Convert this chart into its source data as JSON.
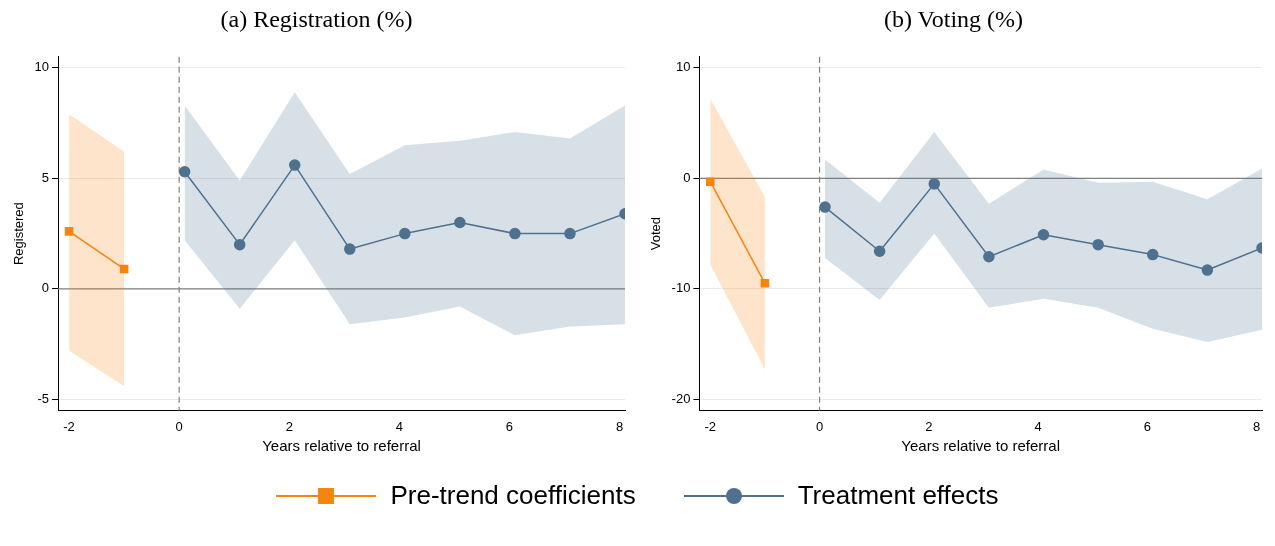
{
  "chart_data": [
    {
      "type": "line",
      "title": "(a) Registration (%)",
      "xlabel": "Years relative to referral",
      "ylabel": "Registered",
      "xlim": [
        -2.2,
        8.1
      ],
      "xticks": [
        -2,
        0,
        2,
        4,
        6,
        8
      ],
      "ylim": [
        -5.5,
        10.5
      ],
      "yticks": [
        -5,
        0,
        5,
        10
      ],
      "grid": "y",
      "legend": "bottom",
      "ref_lines": [
        {
          "axis": "y",
          "value": 0,
          "color": "#808080",
          "line_style": "solid"
        },
        {
          "axis": "x",
          "value": 0,
          "color": "#808080",
          "line_style": "dashed"
        }
      ],
      "series": [
        {
          "name": "Pre-trend coefficients",
          "color": "#f5850f",
          "marker": "square",
          "x": [
            -2,
            -1
          ],
          "values": [
            2.6,
            0.9
          ],
          "lower": [
            -2.8,
            -4.4
          ],
          "upper": [
            7.9,
            6.2
          ]
        },
        {
          "name": "Treatment effects",
          "color": "#4f7190",
          "marker": "circle",
          "x": [
            0.1,
            1.1,
            2.1,
            3.1,
            4.1,
            5.1,
            6.1,
            7.1,
            8.1
          ],
          "values": [
            5.3,
            2.0,
            5.6,
            1.8,
            2.5,
            3.0,
            2.5,
            2.5,
            3.4
          ],
          "lower": [
            2.2,
            -0.9,
            2.2,
            -1.6,
            -1.3,
            -0.8,
            -2.1,
            -1.7,
            -1.6
          ],
          "upper": [
            8.3,
            4.9,
            8.9,
            5.2,
            6.5,
            6.7,
            7.1,
            6.8,
            8.3
          ]
        }
      ]
    },
    {
      "type": "line",
      "title": "(b) Voting (%)",
      "xlabel": "Years relative to referral",
      "ylabel": "Voted",
      "xlim": [
        -2.2,
        8.1
      ],
      "xticks": [
        -2,
        0,
        2,
        4,
        6,
        8
      ],
      "ylim": [
        -21,
        11
      ],
      "yticks": [
        -20,
        -10,
        0,
        10
      ],
      "grid": "y",
      "ref_lines": [
        {
          "axis": "y",
          "value": 0,
          "color": "#808080",
          "line_style": "solid"
        },
        {
          "axis": "x",
          "value": 0,
          "color": "#808080",
          "line_style": "dashed"
        }
      ],
      "series": [
        {
          "color": "#f5850f",
          "marker": "square",
          "x": [
            -2,
            -1
          ],
          "values": [
            -0.3,
            -9.5
          ],
          "lower": [
            -7.8,
            -17.3
          ],
          "upper": [
            7.2,
            -1.7
          ]
        },
        {
          "color": "#4f7190",
          "marker": "circle",
          "x": [
            0.1,
            1.1,
            2.1,
            3.1,
            4.1,
            5.1,
            6.1,
            7.1,
            8.1
          ],
          "values": [
            -2.6,
            -6.6,
            -0.5,
            -7.1,
            -5.1,
            -6.0,
            -6.9,
            -8.3,
            -6.3
          ],
          "lower": [
            -7.2,
            -11.0,
            -5.0,
            -11.7,
            -10.9,
            -11.7,
            -13.6,
            -14.8,
            -13.7
          ],
          "upper": [
            1.7,
            -2.2,
            4.2,
            -2.3,
            0.8,
            -0.4,
            -0.3,
            -1.9,
            0.9
          ]
        }
      ]
    }
  ]
}
